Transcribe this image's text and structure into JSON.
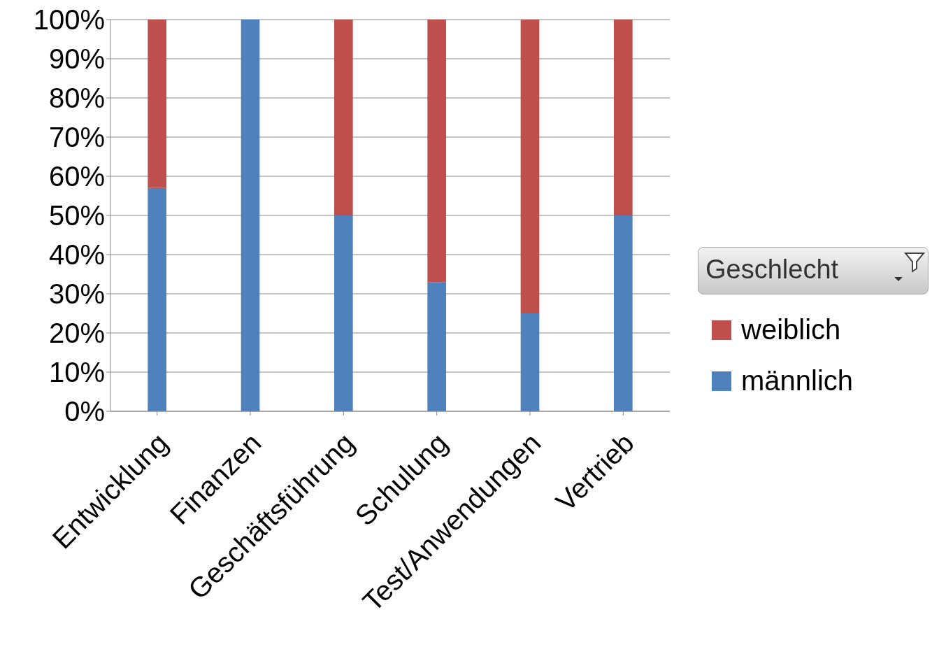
{
  "chart_data": {
    "type": "bar",
    "stacked": true,
    "categories": [
      "Entwicklung",
      "Finanzen",
      "Geschäftsführung",
      "Schulung",
      "Test/Anwendungen",
      "Vertrieb"
    ],
    "series": [
      {
        "name": "männlich",
        "color": "#4f81bd",
        "values": [
          57,
          100,
          50,
          33,
          25,
          50
        ]
      },
      {
        "name": "weiblich",
        "color": "#c0504d",
        "values": [
          43,
          0,
          50,
          67,
          75,
          50
        ]
      }
    ],
    "ylim": [
      0,
      100
    ],
    "yticks": [
      {
        "value": 0,
        "label": "0%"
      },
      {
        "value": 10,
        "label": "10%"
      },
      {
        "value": 20,
        "label": "20%"
      },
      {
        "value": 30,
        "label": "30%"
      },
      {
        "value": 40,
        "label": "40%"
      },
      {
        "value": 50,
        "label": "50%"
      },
      {
        "value": 60,
        "label": "60%"
      },
      {
        "value": 70,
        "label": "70%"
      },
      {
        "value": 80,
        "label": "80%"
      },
      {
        "value": 90,
        "label": "90%"
      },
      {
        "value": 100,
        "label": "100%"
      }
    ],
    "grid": "y",
    "legend": "right",
    "legend_title": "Geschlecht"
  }
}
